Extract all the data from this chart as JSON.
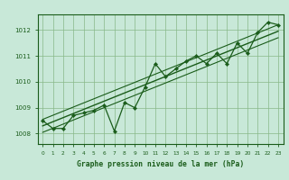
{
  "bg_color": "#c8e8d8",
  "line_color": "#1a5c1a",
  "grid_color": "#88b888",
  "title": "Graphe pression niveau de la mer (hPa)",
  "ylabel_ticks": [
    1008,
    1009,
    1010,
    1011,
    1012
  ],
  "xlim": [
    -0.5,
    23.5
  ],
  "ylim": [
    1007.6,
    1012.6
  ],
  "hours": [
    0,
    1,
    2,
    3,
    4,
    5,
    6,
    7,
    8,
    9,
    10,
    11,
    12,
    13,
    14,
    15,
    16,
    17,
    18,
    19,
    20,
    21,
    22,
    23
  ],
  "pressure": [
    1008.5,
    1008.2,
    1008.2,
    1008.7,
    1008.8,
    1008.9,
    1009.1,
    1008.1,
    1009.2,
    1009.0,
    1009.8,
    1010.7,
    1010.2,
    1010.5,
    1010.8,
    1011.0,
    1010.7,
    1011.1,
    1010.7,
    1011.5,
    1011.1,
    1011.9,
    1012.3,
    1012.2
  ],
  "trend_x": [
    0,
    23
  ],
  "trend_y": [
    1008.3,
    1011.95
  ],
  "trend2_y": [
    1008.55,
    1012.2
  ],
  "trend3_y": [
    1008.05,
    1011.7
  ]
}
